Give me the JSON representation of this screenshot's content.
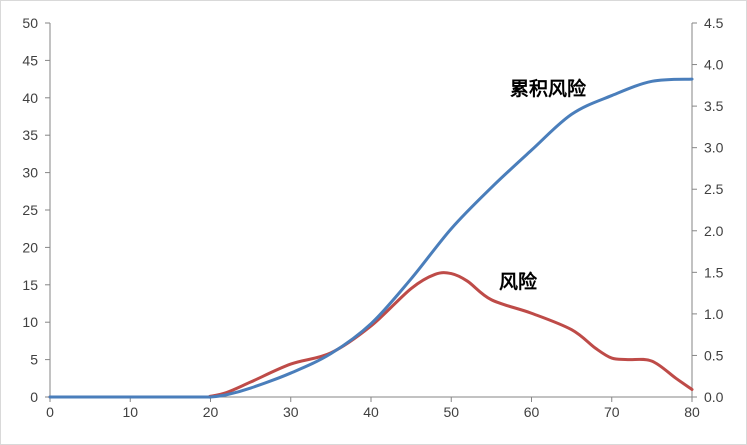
{
  "chart_data": {
    "type": "line",
    "title": "",
    "xlabel": "",
    "ylabel": "",
    "y2label": "",
    "xlim": [
      0,
      80
    ],
    "ylim": [
      0,
      50
    ],
    "y2lim": [
      0,
      4.5
    ],
    "x_ticks": [
      "0",
      "10",
      "20",
      "30",
      "40",
      "50",
      "60",
      "70",
      "80"
    ],
    "y_ticks": [
      "0",
      "5",
      "10",
      "15",
      "20",
      "25",
      "30",
      "35",
      "40",
      "45",
      "50"
    ],
    "y2_ticks": [
      "0.0",
      "0.5",
      "1.0",
      "1.5",
      "2.0",
      "2.5",
      "3.0",
      "3.5",
      "4.0",
      "4.5"
    ],
    "grid": false,
    "legend": "none",
    "series": [
      {
        "name": "累积风险",
        "color": "#4a7ebb",
        "axis": "left",
        "x": [
          0,
          10,
          19,
          20,
          22,
          25,
          30,
          35,
          40,
          45,
          50,
          55,
          60,
          65,
          70,
          75,
          80
        ],
        "values": [
          0,
          0,
          0,
          0,
          0.3,
          1.2,
          3.2,
          5.8,
          9.8,
          15.8,
          22.5,
          28.0,
          33.0,
          37.8,
          40.3,
          42.2,
          42.5
        ]
      },
      {
        "name": "风险",
        "color": "#be4b48",
        "axis": "left",
        "x": [
          0,
          10,
          19,
          20,
          22,
          25,
          30,
          35,
          40,
          45,
          48,
          50,
          52,
          55,
          60,
          65,
          68,
          70,
          72,
          75,
          78,
          80
        ],
        "values": [
          0,
          0,
          0,
          0.1,
          0.6,
          2.0,
          4.4,
          5.9,
          9.5,
          14.5,
          16.4,
          16.5,
          15.5,
          13.0,
          11.2,
          9.0,
          6.5,
          5.2,
          5.0,
          4.8,
          2.5,
          1.0
        ]
      }
    ]
  }
}
